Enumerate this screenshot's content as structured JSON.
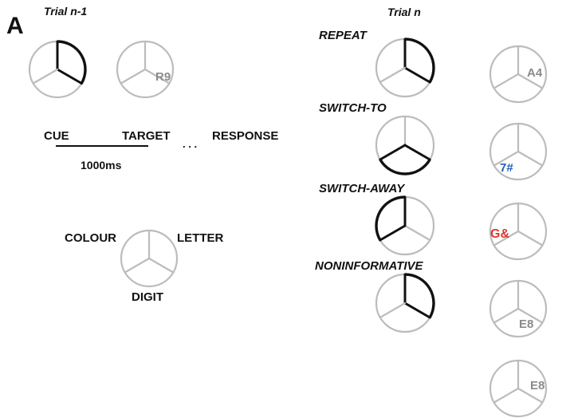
{
  "panel_label": "A",
  "headers": {
    "trial_prev": "Trial n-1",
    "trial_n": "Trial n"
  },
  "timeline": {
    "cue": "CUE",
    "target": "TARGET",
    "dots": ". . .",
    "response": "RESPONSE",
    "duration": "1000ms"
  },
  "dimensions": {
    "colour": "COLOUR",
    "letter": "LETTER",
    "digit": "DIGIT"
  },
  "conditions": [
    "REPEAT",
    "SWITCH-TO",
    "SWITCH-AWAY",
    "NONINFORMATIVE"
  ],
  "targets": [
    {
      "text": "R9",
      "color": "#8a8a8a"
    },
    {
      "text": "A4",
      "color": "#8a8a8a"
    },
    {
      "text": "7#",
      "color": "#1f5fbf"
    },
    {
      "text": "G&",
      "color": "#d93a2b"
    },
    {
      "text": "E8",
      "color": "#8a8a8a"
    },
    {
      "text": "E8",
      "color": "#8a8a8a"
    }
  ],
  "colors": {
    "bold": "#111111",
    "grey": "#bcbcbc"
  }
}
